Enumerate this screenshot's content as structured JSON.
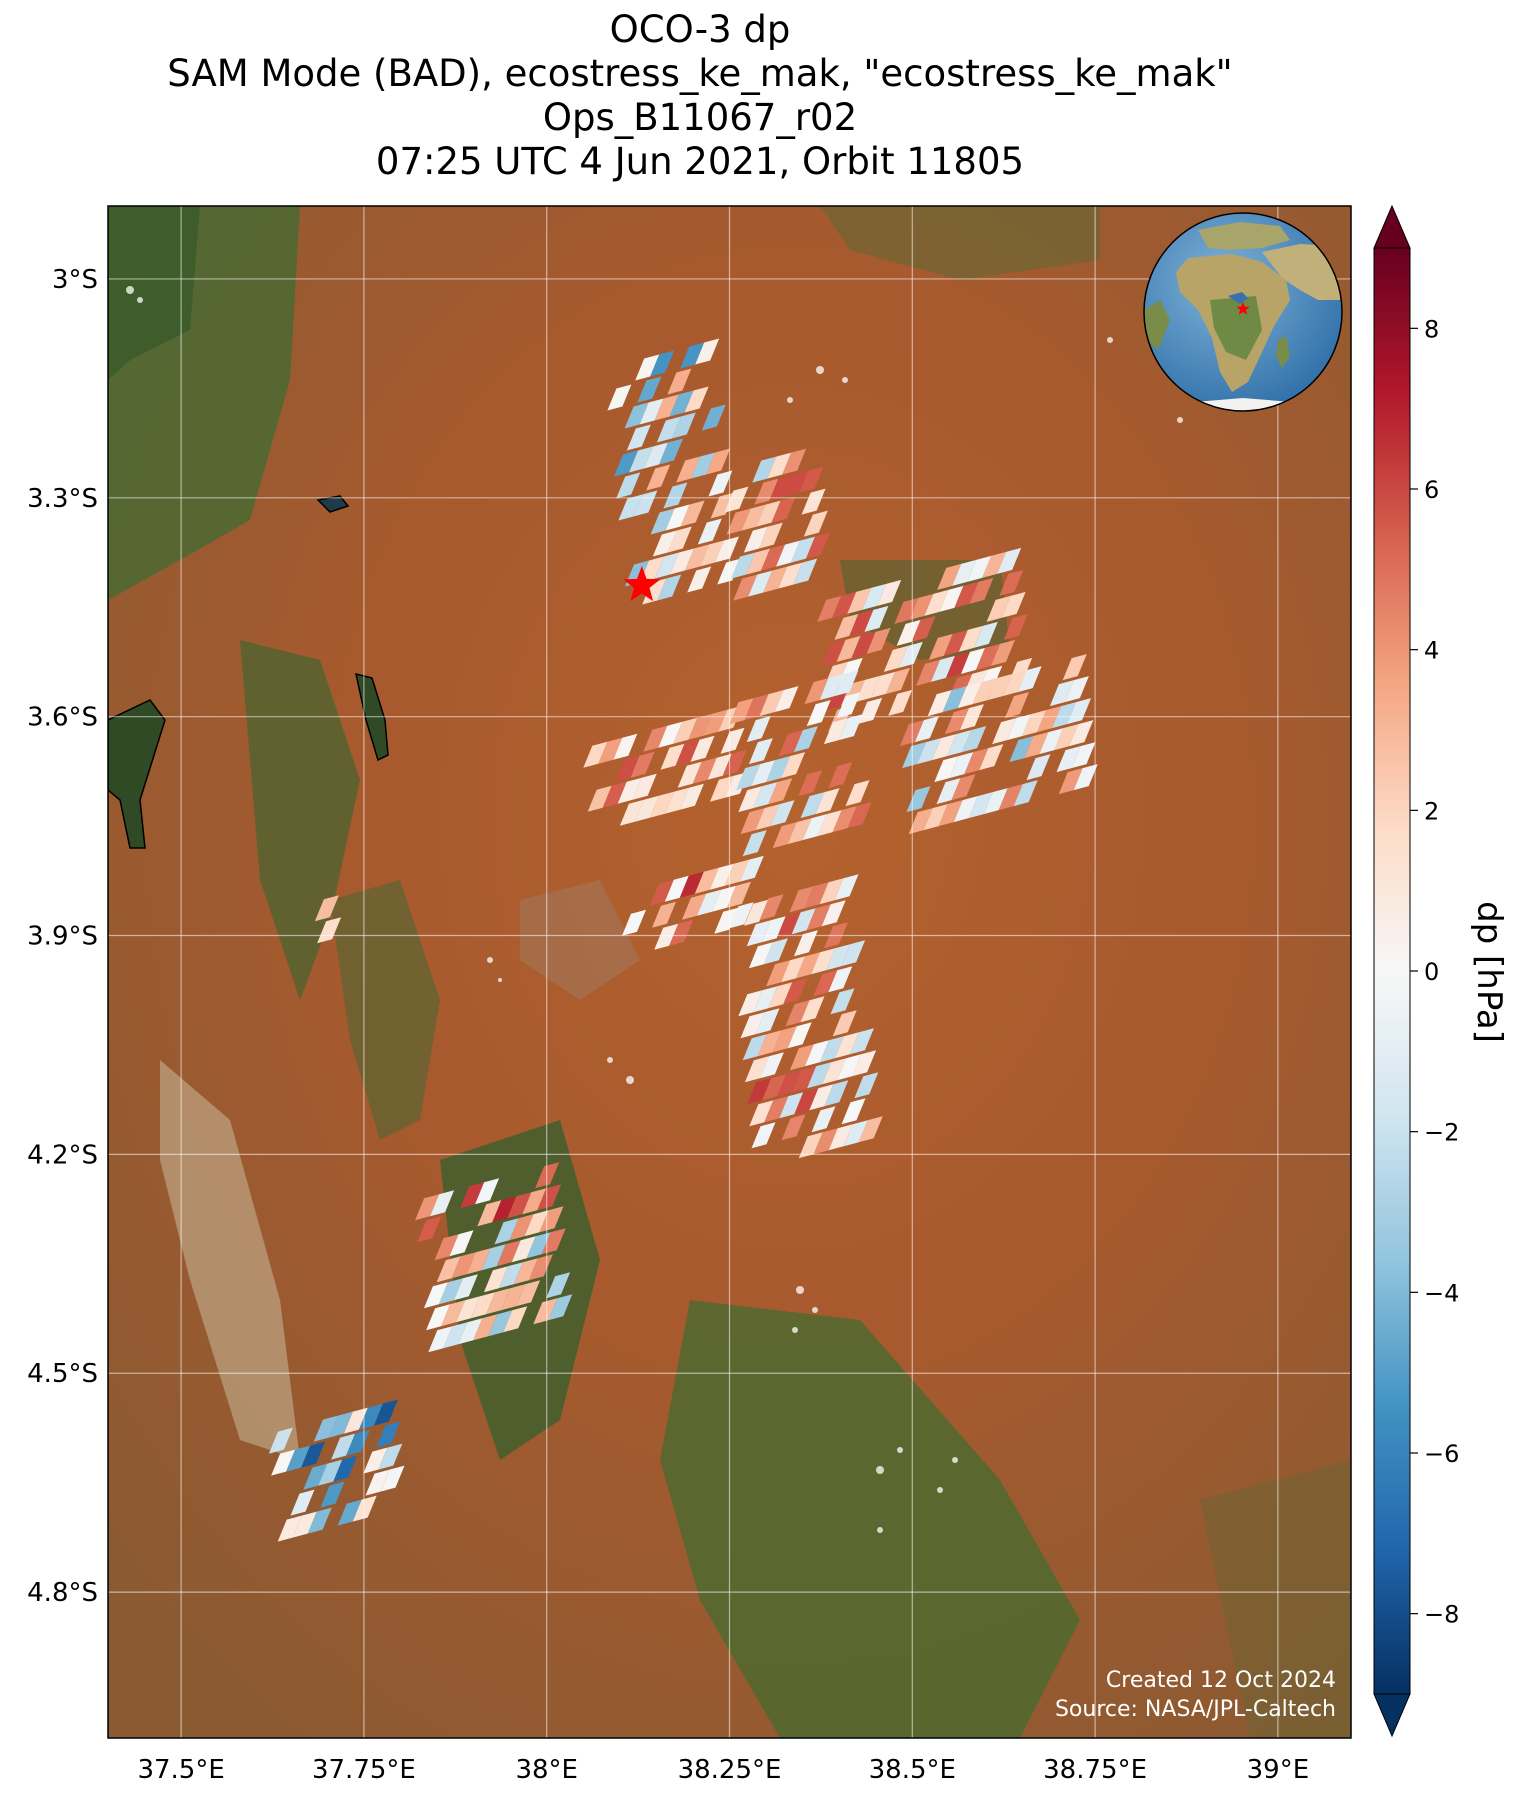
{
  "title": {
    "line1": "OCO-3 dp",
    "line2": "SAM Mode (BAD), ecostress_ke_mak, \"ecostress_ke_mak\"",
    "line3": "Ops_B11067_r02",
    "line4": "07:25 UTC 4 Jun 2021, Orbit 11805"
  },
  "axes": {
    "lon_ticks": [
      "37.5°E",
      "37.75°E",
      "38°E",
      "38.25°E",
      "38.5°E",
      "38.75°E",
      "39°E"
    ],
    "lon_values": [
      37.5,
      37.75,
      38.0,
      38.25,
      38.5,
      38.75,
      39.0
    ],
    "lat_ticks": [
      "3°S",
      "3.3°S",
      "3.6°S",
      "3.9°S",
      "4.2°S",
      "4.5°S",
      "4.8°S"
    ],
    "lat_values": [
      -3.0,
      -3.3,
      -3.6,
      -3.9,
      -4.2,
      -4.5,
      -4.8
    ],
    "lon_range": [
      37.4,
      39.1
    ],
    "lat_range": [
      -2.9,
      -5.0
    ]
  },
  "colorbar": {
    "label": "dp [hPa]",
    "ticks": [
      "8",
      "6",
      "4",
      "2",
      "0",
      "−2",
      "−4",
      "−6",
      "−8"
    ],
    "tick_values": [
      8,
      6,
      4,
      2,
      0,
      -2,
      -4,
      -6,
      -8
    ],
    "range": [
      -9,
      9
    ],
    "colormap": "RdBu_r",
    "extend": "both"
  },
  "target": {
    "lon": 38.13,
    "lat": -3.42,
    "marker": "red-star",
    "color": "#ff0000"
  },
  "credits": {
    "created": "Created 12 Oct 2024",
    "source": "Source: NASA/JPL-Caltech"
  },
  "inset_globe": {
    "center_lon": 38.13,
    "center_lat": -3.42,
    "marker": "red-star"
  },
  "chart_data": {
    "type": "scatter",
    "title": "OCO-3 dp",
    "xlabel": "",
    "ylabel": "",
    "value_label": "dp [hPa]",
    "xlim": [
      37.4,
      39.1
    ],
    "ylim": [
      -5.0,
      -2.9
    ],
    "clusters": [
      {
        "lon": [
          38.08,
          38.22
        ],
        "lat": [
          -3.12,
          -3.45
        ],
        "bias": -1.0,
        "spread": 4.5
      },
      {
        "lon": [
          38.24,
          38.36
        ],
        "lat": [
          -3.26,
          -3.45
        ],
        "bias": 1.5,
        "spread": 4.5
      },
      {
        "lon": [
          38.37,
          38.63
        ],
        "lat": [
          -3.44,
          -3.62
        ],
        "bias": 2.5,
        "spread": 4.0
      },
      {
        "lon": [
          38.48,
          38.72
        ],
        "lat": [
          -3.58,
          -3.76
        ],
        "bias": 0.5,
        "spread": 4.5
      },
      {
        "lon": [
          38.05,
          38.25
        ],
        "lat": [
          -3.64,
          -3.75
        ],
        "bias": 3.0,
        "spread": 3.0
      },
      {
        "lon": [
          38.25,
          38.42
        ],
        "lat": [
          -3.58,
          -3.8
        ],
        "bias": 1.5,
        "spread": 4.5
      },
      {
        "lon": [
          38.1,
          38.28
        ],
        "lat": [
          -3.84,
          -3.94
        ],
        "bias": 3.0,
        "spread": 4.0
      },
      {
        "lon": [
          38.25,
          38.42
        ],
        "lat": [
          -3.86,
          -4.22
        ],
        "bias": 2.0,
        "spread": 4.5
      },
      {
        "lon": [
          37.82,
          38.0
        ],
        "lat": [
          -4.26,
          -4.48
        ],
        "bias": 1.5,
        "spread": 6.0
      },
      {
        "lon": [
          37.62,
          37.78
        ],
        "lat": [
          -4.58,
          -4.74
        ],
        "bias": -3.0,
        "spread": 5.0
      },
      {
        "lon": [
          37.68,
          37.73
        ],
        "lat": [
          -3.82,
          -3.93
        ],
        "bias": 2.0,
        "spread": 2.0
      }
    ],
    "value_range": [
      -9,
      9
    ]
  }
}
